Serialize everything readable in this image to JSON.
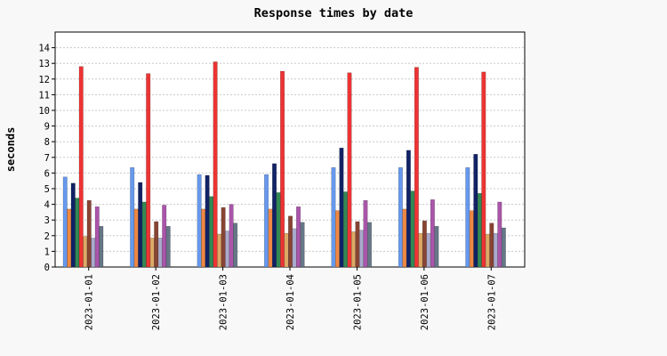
{
  "chart_data": {
    "type": "bar",
    "title": "Response times by date",
    "xlabel": "",
    "ylabel": "seconds",
    "ylim": [
      0,
      15
    ],
    "yticks": [
      0,
      1,
      2,
      3,
      4,
      5,
      6,
      7,
      8,
      9,
      10,
      11,
      12,
      13,
      14
    ],
    "grid": true,
    "legend": "none",
    "categories": [
      "2023-01-01",
      "2023-01-02",
      "2023-01-03",
      "2023-01-04",
      "2023-01-05",
      "2023-01-06",
      "2023-01-07"
    ],
    "series": [
      {
        "color": "#6699ee",
        "values": [
          5.75,
          6.35,
          5.9,
          5.9,
          6.35,
          6.35,
          6.35
        ]
      },
      {
        "color": "#ee8844",
        "values": [
          3.7,
          3.7,
          3.7,
          3.7,
          3.6,
          3.7,
          3.6
        ]
      },
      {
        "color": "#112266",
        "values": [
          5.35,
          5.4,
          5.85,
          6.6,
          7.6,
          7.45,
          7.2
        ]
      },
      {
        "color": "#338855",
        "values": [
          4.4,
          4.15,
          4.5,
          4.75,
          4.8,
          4.85,
          4.7
        ]
      },
      {
        "color": "#ee3333",
        "values": [
          12.8,
          12.35,
          13.1,
          12.5,
          12.4,
          12.75,
          12.45
        ]
      },
      {
        "color": "#ddaa66",
        "values": [
          1.95,
          1.85,
          2.1,
          2.15,
          2.25,
          2.15,
          2.1
        ]
      },
      {
        "color": "#884433",
        "values": [
          4.25,
          2.9,
          3.8,
          3.25,
          2.9,
          2.95,
          2.8
        ]
      },
      {
        "color": "#aaaacc",
        "values": [
          1.85,
          1.85,
          2.3,
          2.45,
          2.35,
          2.15,
          2.15
        ]
      },
      {
        "color": "#aa55aa",
        "values": [
          3.85,
          3.95,
          4.0,
          3.85,
          4.25,
          4.3,
          4.15
        ]
      },
      {
        "color": "#667788",
        "values": [
          2.6,
          2.6,
          2.8,
          2.85,
          2.85,
          2.6,
          2.5
        ]
      }
    ]
  }
}
